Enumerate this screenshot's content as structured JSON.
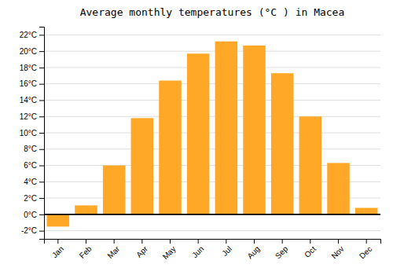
{
  "chart_data": {
    "type": "bar",
    "title": "Average monthly temperatures (°C ) in Macea",
    "categories": [
      "Jan",
      "Feb",
      "Mar",
      "Apr",
      "May",
      "Jun",
      "Jul",
      "Aug",
      "Sep",
      "Oct",
      "Nov",
      "Dec"
    ],
    "values": [
      -1.5,
      1.1,
      6.0,
      11.8,
      16.4,
      19.7,
      21.2,
      20.7,
      17.3,
      12.0,
      6.3,
      0.8
    ],
    "color": "#FFA726",
    "ylim": [
      -3,
      23
    ],
    "yticks": [
      {
        "value": -2,
        "label": "-2°C"
      },
      {
        "value": 0,
        "label": "0°C"
      },
      {
        "value": 2,
        "label": "2°C"
      },
      {
        "value": 4,
        "label": "4°C"
      },
      {
        "value": 6,
        "label": "6°C"
      },
      {
        "value": 8,
        "label": "8°C"
      },
      {
        "value": 10,
        "label": "10°C"
      },
      {
        "value": 12,
        "label": "12°C"
      },
      {
        "value": 14,
        "label": "14°C"
      },
      {
        "value": 16,
        "label": "16°C"
      },
      {
        "value": 18,
        "label": "18°C"
      },
      {
        "value": 20,
        "label": "20°C"
      },
      {
        "value": 22,
        "label": "22°C"
      }
    ],
    "grid": true
  }
}
